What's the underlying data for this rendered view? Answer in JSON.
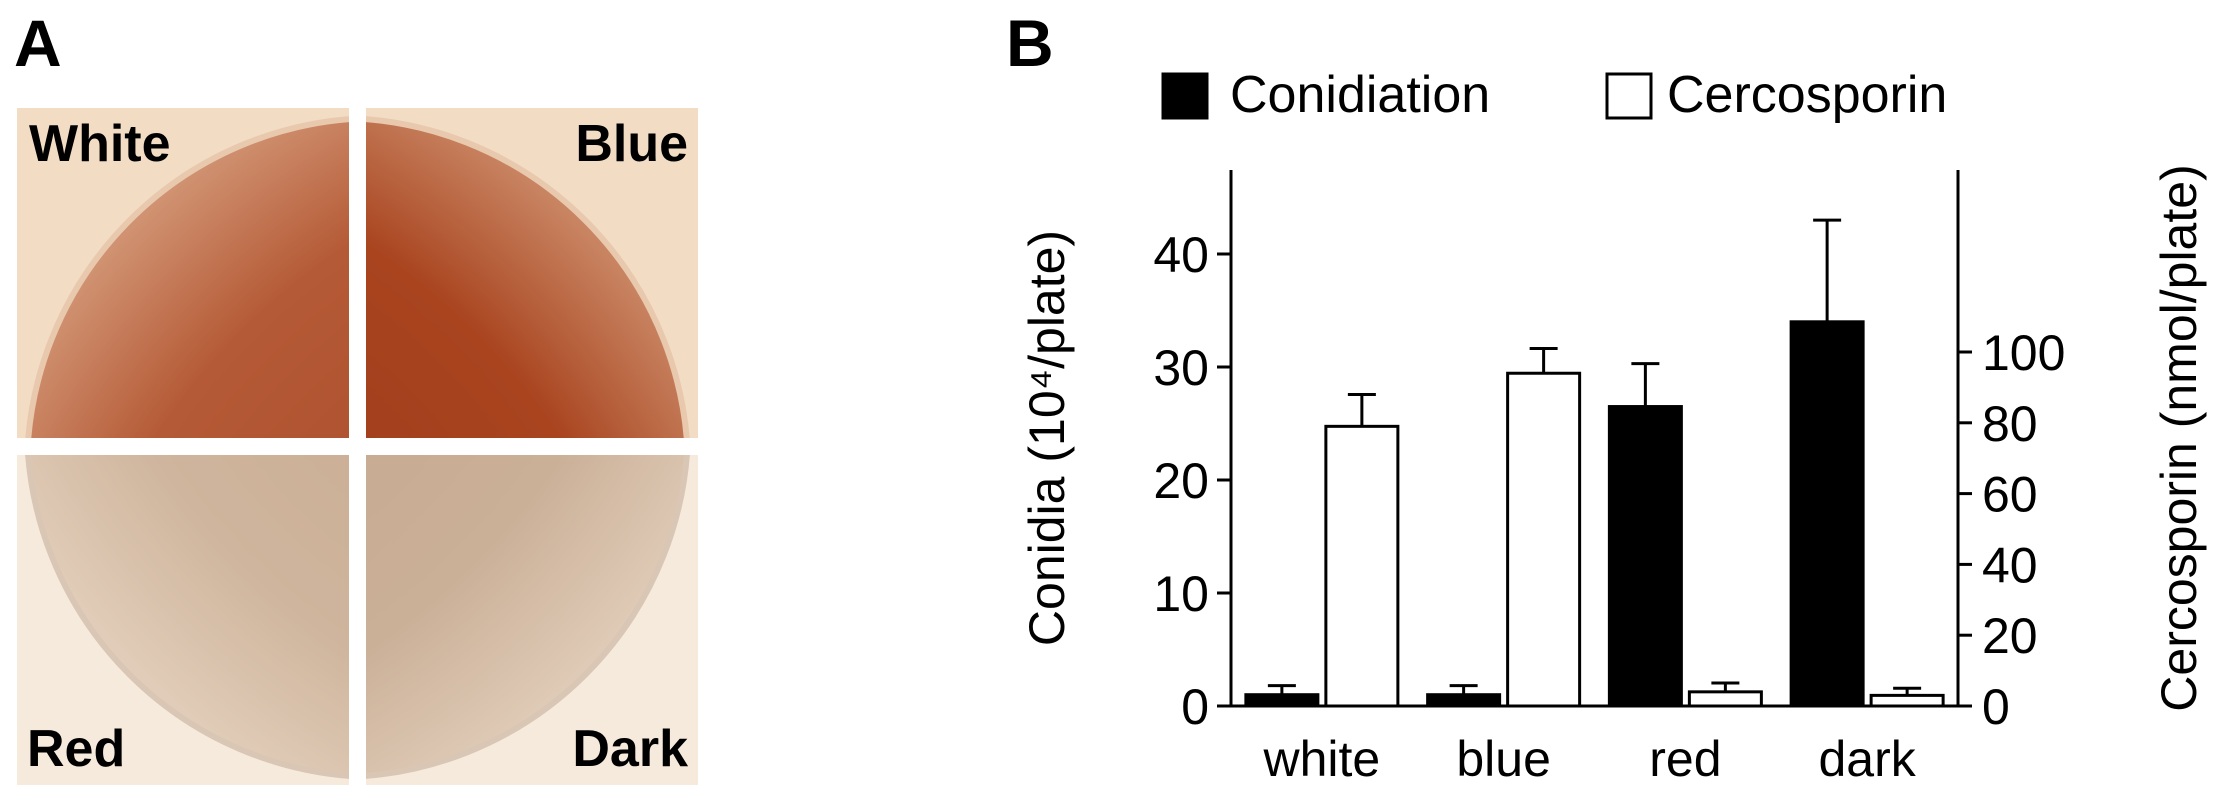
{
  "panels": {
    "a_label": "A",
    "b_label": "B"
  },
  "plates": [
    {
      "label": "White",
      "tone": "#b9532f"
    },
    {
      "label": "Blue",
      "tone": "#a8401f"
    },
    {
      "label": "Red",
      "tone": "#cdb49c"
    },
    {
      "label": "Dark",
      "tone": "#c9b097"
    }
  ],
  "chart_data": {
    "type": "bar",
    "categories": [
      "white",
      "blue",
      "red",
      "dark"
    ],
    "series": [
      {
        "name": "Conidiation",
        "axis": "left",
        "color": "#000000",
        "values": [
          1,
          1,
          26.5,
          34
        ],
        "errors": [
          0.8,
          0.8,
          3.8,
          9
        ]
      },
      {
        "name": "Cercosporin",
        "axis": "right",
        "color": "#ffffff",
        "values": [
          79,
          94,
          4,
          3
        ],
        "errors": [
          9,
          7,
          2.5,
          2
        ]
      }
    ],
    "ylabel": "Conidia (10⁴/plate)",
    "y2label": "Cercosporin (nmol/plate)",
    "ylim": [
      0,
      45
    ],
    "y2lim": [
      0,
      112
    ],
    "yticks": [
      0,
      10,
      20,
      30,
      40
    ],
    "y2ticks": [
      0,
      20,
      40,
      60,
      80,
      100
    ],
    "legend_position": "top"
  }
}
